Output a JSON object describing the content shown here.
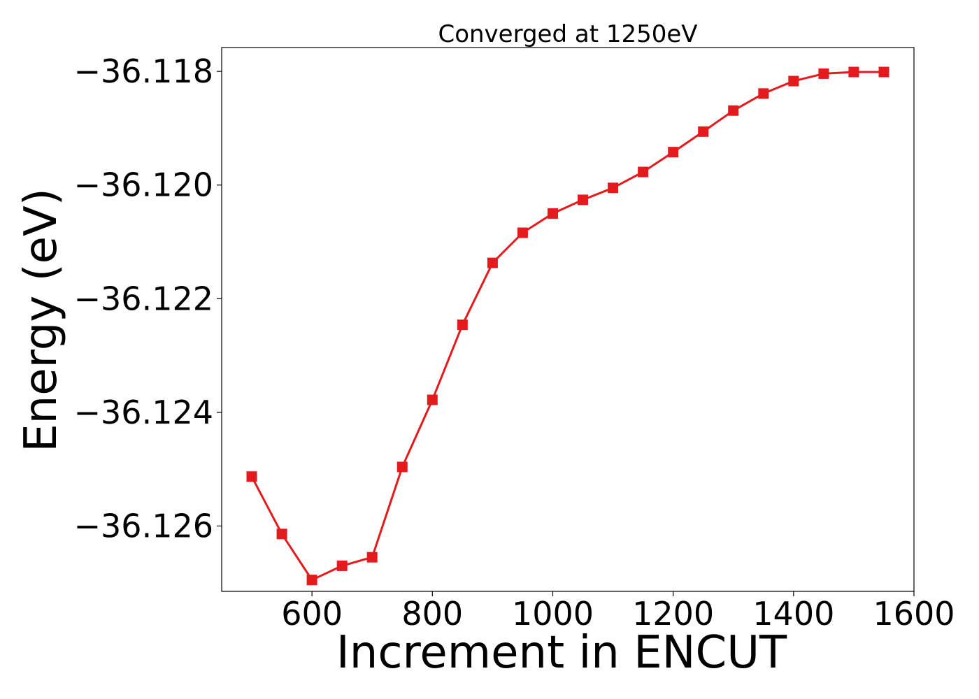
{
  "chart_data": {
    "type": "line",
    "title": "Converged at 1250eV",
    "xlabel": "Increment in ENCUT",
    "ylabel": "Energy (eV)",
    "xlim": [
      450,
      1600
    ],
    "ylim": [
      -36.12715,
      -36.11758
    ],
    "x_ticks": [
      600,
      800,
      1000,
      1200,
      1400,
      1600
    ],
    "x_tick_labels": [
      "600",
      "800",
      "1000",
      "1200",
      "1400",
      "1600"
    ],
    "y_ticks": [
      -36.118,
      -36.12,
      -36.122,
      -36.124,
      -36.126
    ],
    "y_tick_labels": [
      "−36.118",
      "−36.120",
      "−36.122",
      "−36.124",
      "−36.126"
    ],
    "grid": false,
    "series": [
      {
        "color": "#e41a1c",
        "marker": "square",
        "x": [
          500,
          550,
          600,
          650,
          700,
          750,
          800,
          850,
          900,
          950,
          1000,
          1050,
          1100,
          1150,
          1200,
          1250,
          1300,
          1350,
          1400,
          1450,
          1500,
          1550
        ],
        "y": [
          -36.12513,
          -36.12614,
          -36.12695,
          -36.1267,
          -36.12655,
          -36.12496,
          -36.12378,
          -36.12246,
          -36.12137,
          -36.12084,
          -36.1205,
          -36.12026,
          -36.12005,
          -36.11977,
          -36.11942,
          -36.11906,
          -36.11869,
          -36.11839,
          -36.11817,
          -36.11804,
          -36.11801,
          -36.11801
        ]
      }
    ]
  }
}
